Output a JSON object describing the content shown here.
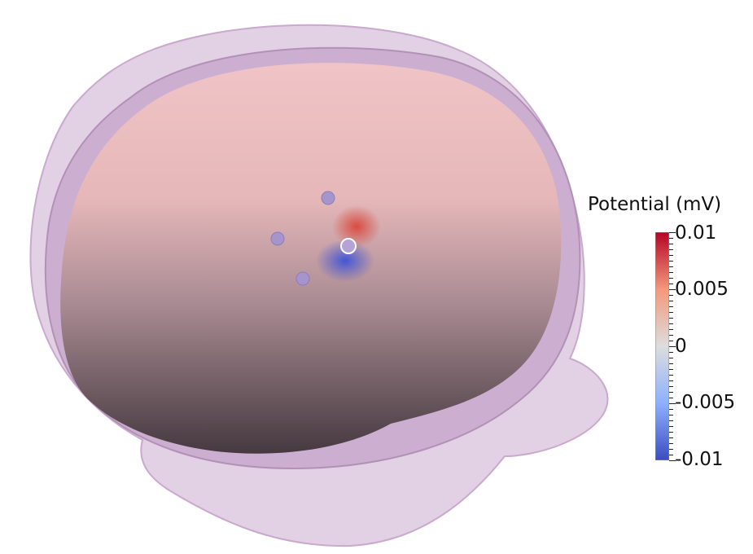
{
  "scene": {
    "description_icon": "head-model-icon",
    "colors": {
      "skin": "#d9c3dd",
      "skull": "#c3a3c6",
      "brain_top": "#e8bcc0",
      "brain_bottom": "#4a3d45",
      "electrode": "#a695cc",
      "positive": "#d14a3d",
      "negative": "#4b58d0"
    }
  },
  "colorbar": {
    "title": "Potential (mV)",
    "range": [
      -0.01,
      0.01
    ],
    "colors": [
      "#3b4cc0",
      "#dddddd",
      "#b40426"
    ],
    "ticks": [
      {
        "label": "0.01",
        "value": 0.01
      },
      {
        "label": "0.005",
        "value": 0.005
      },
      {
        "label": "0",
        "value": 0
      },
      {
        "label": "-0.005",
        "value": -0.005
      },
      {
        "label": "-0.01",
        "value": -0.01
      }
    ]
  }
}
